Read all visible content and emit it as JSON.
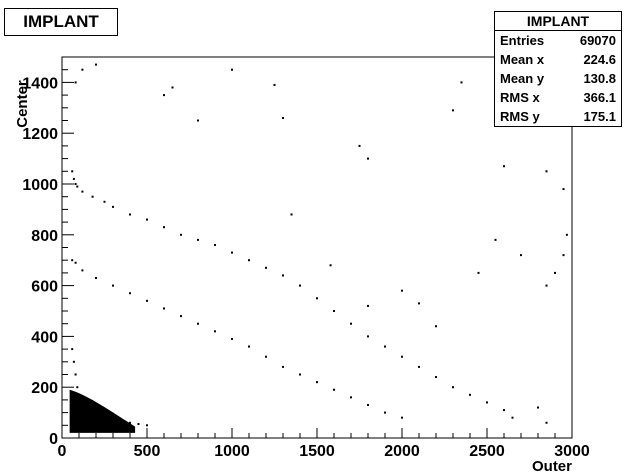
{
  "title": "IMPLANT",
  "stats": {
    "title": "IMPLANT",
    "rows": [
      {
        "label": "Entries",
        "value": "69070"
      },
      {
        "label": "Mean x",
        "value": "224.6"
      },
      {
        "label": "Mean y",
        "value": "130.8"
      },
      {
        "label": "RMS x",
        "value": "366.1"
      },
      {
        "label": "RMS y",
        "value": "175.1"
      }
    ]
  },
  "chart_data": {
    "type": "scatter",
    "title": "IMPLANT",
    "xlabel": "Outer",
    "ylabel": "Center",
    "xlim": [
      0,
      3000
    ],
    "ylim": [
      0,
      1500
    ],
    "xticks": [
      0,
      500,
      1000,
      1500,
      2000,
      2500,
      3000
    ],
    "yticks": [
      0,
      200,
      400,
      600,
      800,
      1000,
      1200,
      1400
    ],
    "grid": false,
    "legend": "none",
    "series": [
      {
        "values_description_free": true,
        "color": "#000000",
        "points": [
          [
            60,
            1050
          ],
          [
            70,
            1020
          ],
          [
            80,
            1000
          ],
          [
            90,
            990
          ],
          [
            120,
            970
          ],
          [
            180,
            950
          ],
          [
            250,
            930
          ],
          [
            300,
            910
          ],
          [
            400,
            880
          ],
          [
            500,
            860
          ],
          [
            600,
            830
          ],
          [
            700,
            800
          ],
          [
            800,
            780
          ],
          [
            900,
            760
          ],
          [
            1000,
            730
          ],
          [
            1100,
            700
          ],
          [
            1200,
            670
          ],
          [
            1300,
            640
          ],
          [
            1400,
            600
          ],
          [
            1500,
            550
          ],
          [
            1600,
            500
          ],
          [
            1700,
            450
          ],
          [
            1800,
            400
          ],
          [
            1900,
            360
          ],
          [
            2000,
            320
          ],
          [
            2100,
            280
          ],
          [
            2200,
            240
          ],
          [
            2300,
            200
          ],
          [
            2400,
            170
          ],
          [
            2500,
            140
          ],
          [
            2600,
            110
          ],
          [
            2650,
            80
          ],
          [
            60,
            700
          ],
          [
            80,
            690
          ],
          [
            120,
            660
          ],
          [
            200,
            630
          ],
          [
            300,
            600
          ],
          [
            400,
            570
          ],
          [
            500,
            540
          ],
          [
            600,
            510
          ],
          [
            700,
            480
          ],
          [
            800,
            450
          ],
          [
            900,
            420
          ],
          [
            1000,
            390
          ],
          [
            1100,
            360
          ],
          [
            1200,
            320
          ],
          [
            1300,
            280
          ],
          [
            1400,
            250
          ],
          [
            1500,
            220
          ],
          [
            1600,
            190
          ],
          [
            1700,
            160
          ],
          [
            1800,
            130
          ],
          [
            1900,
            100
          ],
          [
            2000,
            80
          ],
          [
            60,
            350
          ],
          [
            70,
            300
          ],
          [
            80,
            250
          ],
          [
            90,
            200
          ],
          [
            100,
            150
          ],
          [
            120,
            120
          ],
          [
            150,
            100
          ],
          [
            200,
            90
          ],
          [
            250,
            80
          ],
          [
            300,
            70
          ],
          [
            350,
            65
          ],
          [
            400,
            60
          ],
          [
            450,
            55
          ],
          [
            500,
            50
          ],
          [
            80,
            1400
          ],
          [
            120,
            1450
          ],
          [
            200,
            1470
          ],
          [
            600,
            1350
          ],
          [
            650,
            1380
          ],
          [
            800,
            1250
          ],
          [
            1000,
            1450
          ],
          [
            1250,
            1390
          ],
          [
            1300,
            1260
          ],
          [
            1750,
            1150
          ],
          [
            1800,
            1100
          ],
          [
            2300,
            1290
          ],
          [
            2350,
            1400
          ],
          [
            2600,
            1070
          ],
          [
            2850,
            1050
          ],
          [
            2950,
            980
          ],
          [
            2970,
            800
          ],
          [
            2950,
            720
          ],
          [
            2900,
            650
          ],
          [
            2850,
            600
          ],
          [
            2700,
            720
          ],
          [
            2550,
            780
          ],
          [
            2450,
            650
          ],
          [
            2100,
            530
          ],
          [
            2000,
            580
          ],
          [
            1350,
            880
          ],
          [
            1580,
            680
          ],
          [
            1800,
            520
          ],
          [
            2200,
            440
          ],
          [
            2800,
            120
          ],
          [
            2850,
            60
          ]
        ]
      }
    ]
  }
}
